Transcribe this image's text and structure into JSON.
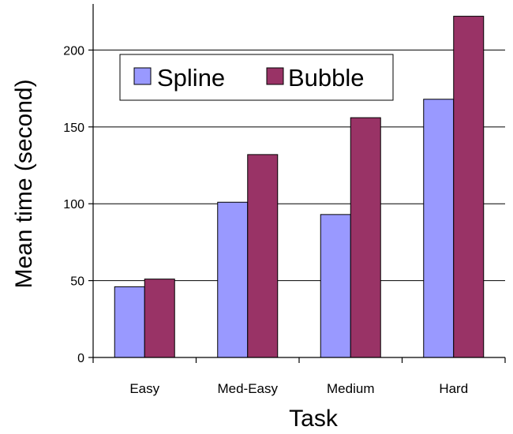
{
  "chart_data": {
    "type": "bar",
    "title": "",
    "xlabel": "Task",
    "ylabel": "Mean time (second)",
    "categories": [
      "Easy",
      "Med-Easy",
      "Medium",
      "Hard"
    ],
    "series": [
      {
        "name": "Spline",
        "values": [
          46,
          101,
          93,
          168
        ],
        "color": "#9999ff"
      },
      {
        "name": "Bubble",
        "values": [
          51,
          132,
          156,
          222
        ],
        "color": "#993366"
      }
    ],
    "ylim": [
      0,
      230
    ],
    "yticks": [
      0,
      50,
      100,
      150,
      200
    ],
    "grid": true,
    "legend_position": "top-left"
  }
}
